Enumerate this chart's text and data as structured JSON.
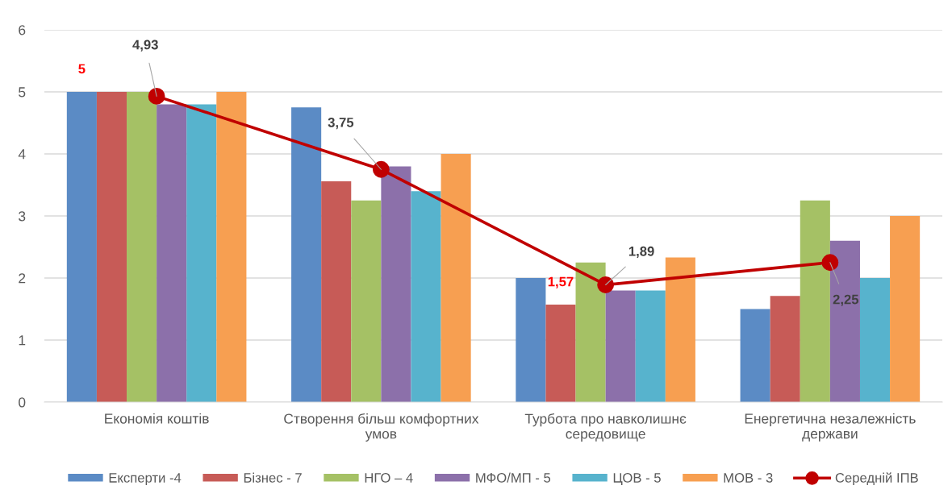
{
  "chart_data": {
    "type": "bar",
    "categories": [
      "Економія коштів",
      "Створення більш комфортних\nумов",
      "Турбота про навколишнє\nсередовище",
      "Енергетична незалежність\nдержави"
    ],
    "series": [
      {
        "name": "Експерти -4",
        "color": "#5b8bc5",
        "values": [
          5,
          4.75,
          2,
          1.5
        ],
        "value_labels": [
          "5",
          null,
          null,
          null
        ]
      },
      {
        "name": "Бізнес - 7",
        "color": "#c75b57",
        "values": [
          5,
          3.56,
          1.57,
          1.71
        ],
        "value_labels": [
          null,
          null,
          "1,57",
          null
        ]
      },
      {
        "name": "НГО – 4",
        "color": "#a5c165",
        "values": [
          5,
          3.25,
          2.25,
          3.25
        ]
      },
      {
        "name": "МФО/МП - 5",
        "color": "#8c70aa",
        "values": [
          4.8,
          3.8,
          1.8,
          2.6
        ]
      },
      {
        "name": "ЦОВ - 5",
        "color": "#57b3cd",
        "values": [
          4.8,
          3.4,
          1.8,
          2
        ]
      },
      {
        "name": "МОВ - 3",
        "color": "#f79f51",
        "values": [
          5,
          4,
          2.33,
          3
        ]
      },
      {
        "name": "Середній ІПВ",
        "type": "line",
        "color": "#c00000",
        "values": [
          4.93,
          3.75,
          1.89,
          2.25
        ],
        "value_labels": [
          "4,93",
          "3,75",
          "1,89",
          "2,25"
        ],
        "marker": "circle",
        "line_style": "solid"
      }
    ],
    "ylim": [
      0,
      6
    ],
    "yticks": [
      0,
      1,
      2,
      3,
      4,
      5,
      6
    ],
    "grid": "y",
    "legend": "bottom"
  }
}
